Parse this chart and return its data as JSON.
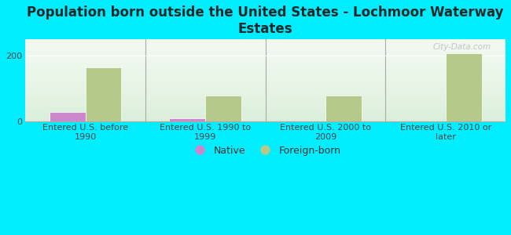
{
  "title": "Population born outside the United States - Lochmoor Waterway\nEstates",
  "categories": [
    "Entered U.S. before\n1990",
    "Entered U.S. 1990 to\n1999",
    "Entered U.S. 2000 to\n2009",
    "Entered U.S. 2010 or\nlater"
  ],
  "native_values": [
    30,
    10,
    0,
    0
  ],
  "foreign_values": [
    165,
    80,
    80,
    207
  ],
  "native_color": "#cc88cc",
  "foreign_color": "#b5c98a",
  "background_color": "#00eeff",
  "ylim": [
    0,
    250
  ],
  "yticks": [
    0,
    200
  ],
  "bar_width": 0.3,
  "legend_native": "Native",
  "legend_foreign": "Foreign-born",
  "watermark": "City-Data.com",
  "title_fontsize": 12,
  "axis_label_fontsize": 8,
  "legend_fontsize": 9,
  "title_color": "#1a2a2a"
}
